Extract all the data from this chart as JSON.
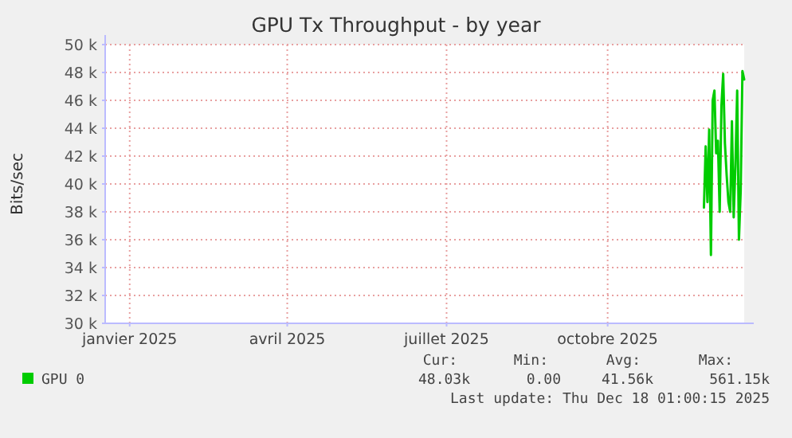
{
  "chart_data": {
    "type": "line",
    "title": "GPU Tx Throughput - by year",
    "ylabel": "Bits/sec",
    "x": [
      "2025-11-25",
      "2025-11-26",
      "2025-11-27",
      "2025-11-28",
      "2025-11-29",
      "2025-11-30",
      "2025-12-01",
      "2025-12-02",
      "2025-12-03",
      "2025-12-04",
      "2025-12-05",
      "2025-12-06",
      "2025-12-07",
      "2025-12-08",
      "2025-12-09",
      "2025-12-10",
      "2025-12-11",
      "2025-12-12",
      "2025-12-13",
      "2025-12-14",
      "2025-12-15",
      "2025-12-16",
      "2025-12-17",
      "2025-12-18"
    ],
    "series": [
      {
        "name": "GPU 0",
        "color": "#00cc00",
        "values": [
          38300,
          42700,
          38700,
          43900,
          34900,
          46000,
          46700,
          42200,
          43100,
          38000,
          45600,
          47900,
          42900,
          40600,
          38700,
          38000,
          44500,
          37600,
          41400,
          46700,
          36000,
          39500,
          48100,
          47500
        ]
      }
    ],
    "xlim": [
      "2024-12-18",
      "2025-12-18"
    ],
    "xticks": [
      {
        "value": "2025-01-01",
        "label": "janvier 2025"
      },
      {
        "value": "2025-04-01",
        "label": "avril 2025"
      },
      {
        "value": "2025-07-01",
        "label": "juillet 2025"
      },
      {
        "value": "2025-10-01",
        "label": "octobre 2025"
      }
    ],
    "ylim": [
      30000,
      50000
    ],
    "yticks": [
      {
        "value": 30000,
        "label": "30 k"
      },
      {
        "value": 32000,
        "label": "32 k"
      },
      {
        "value": 34000,
        "label": "34 k"
      },
      {
        "value": 36000,
        "label": "36 k"
      },
      {
        "value": 38000,
        "label": "38 k"
      },
      {
        "value": 40000,
        "label": "40 k"
      },
      {
        "value": 42000,
        "label": "42 k"
      },
      {
        "value": 44000,
        "label": "44 k"
      },
      {
        "value": 46000,
        "label": "46 k"
      },
      {
        "value": 48000,
        "label": "48 k"
      },
      {
        "value": 50000,
        "label": "50 k"
      }
    ],
    "grid": true,
    "legend": "bottom",
    "marker": "none",
    "line_style": "solid",
    "annotations": [
      "Cur:",
      "Min:",
      "Avg:",
      "Max:",
      "48.03k",
      "0.00",
      "41.56k",
      "561.15k",
      "Last update: Thu Dec 18 01:00:15 2025"
    ]
  }
}
